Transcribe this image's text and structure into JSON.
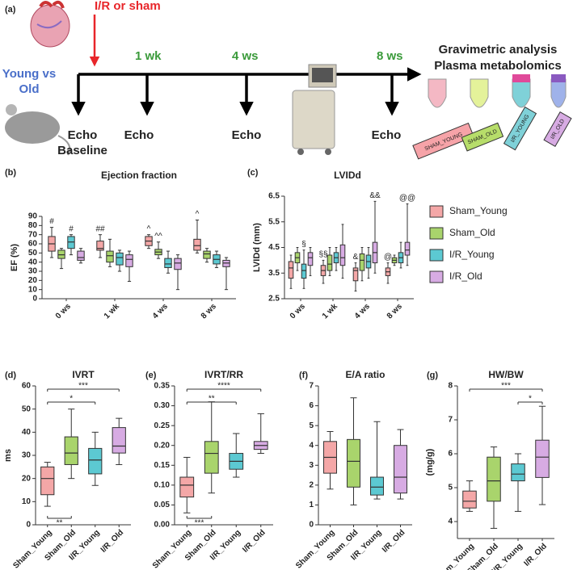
{
  "figure": {
    "panel_label": "(a)",
    "intervention": "I/R or sham",
    "groups": [
      "Young vs",
      "Old"
    ],
    "timepoints": [
      "1 wk",
      "4 ws",
      "8 ws"
    ],
    "echo": [
      "Echo",
      "Echo",
      "Echo",
      "Echo"
    ],
    "baseline": "Baseline",
    "endpoints": [
      "Gravimetric analysis",
      "Plasma metabolomics"
    ],
    "tubes": [
      "SHAM_YOUNG",
      "SHAM_OLD",
      "I/R_YOUNG",
      "I/R_OLD"
    ]
  },
  "chart_data": [
    {
      "type": "box",
      "label": "(b)",
      "title": "Ejection fraction",
      "ylabel": "EF (%)",
      "ylim": [
        0,
        90
      ],
      "yticks": [
        0,
        10,
        20,
        30,
        40,
        50,
        60,
        70,
        80,
        90
      ],
      "categories": [
        "0 ws",
        "1 wk",
        "4 ws",
        "8 ws"
      ],
      "series": [
        {
          "color": "#f4a7a7",
          "min": [
            45,
            45,
            55,
            50
          ],
          "q1": [
            52,
            53,
            58,
            53
          ],
          "median": [
            60,
            55,
            63,
            58
          ],
          "q3": [
            68,
            63,
            68,
            65
          ],
          "max": [
            78,
            70,
            70,
            86
          ],
          "marks": [
            "#",
            "##",
            "^",
            "^"
          ]
        },
        {
          "color": "#a9d46c",
          "min": [
            33,
            35,
            44,
            40
          ],
          "q1": [
            44,
            40,
            48,
            44
          ],
          "median": [
            48,
            47,
            51,
            49
          ],
          "q3": [
            53,
            52,
            54,
            52
          ],
          "max": [
            55,
            65,
            62,
            55
          ],
          "marks": [
            null,
            null,
            "^^",
            null
          ]
        },
        {
          "color": "#5cc9d2",
          "min": [
            48,
            30,
            28,
            34
          ],
          "q1": [
            55,
            37,
            34,
            38
          ],
          "median": [
            62,
            45,
            38,
            43
          ],
          "q3": [
            68,
            50,
            44,
            48
          ],
          "max": [
            70,
            53,
            52,
            52
          ],
          "marks": [
            "#",
            null,
            null,
            null
          ]
        },
        {
          "color": "#d7abe3",
          "min": [
            39,
            19,
            10,
            10
          ],
          "q1": [
            42,
            35,
            32,
            35
          ],
          "median": [
            45,
            43,
            39,
            39
          ],
          "q3": [
            52,
            48,
            44,
            42
          ],
          "max": [
            55,
            52,
            48,
            45
          ],
          "marks": [
            null,
            null,
            null,
            null
          ]
        }
      ]
    },
    {
      "type": "box",
      "label": "(c)",
      "title": "LVIDd",
      "ylabel": "LVIDd (mm)",
      "ylim": [
        2.5,
        6.5
      ],
      "yticks": [
        2.5,
        3.5,
        4.5,
        5.5,
        6.5
      ],
      "legend": "right",
      "categories": [
        "0 ws",
        "1 wk",
        "4 ws",
        "8 ws"
      ],
      "series": [
        {
          "name": "Sham_Young",
          "color": "#f4a7a7",
          "min": [
            2.9,
            3.1,
            2.8,
            3.1
          ],
          "q1": [
            3.3,
            3.4,
            3.2,
            3.4
          ],
          "median": [
            3.7,
            3.6,
            3.6,
            3.55
          ],
          "q3": [
            3.95,
            3.8,
            3.7,
            3.7
          ],
          "max": [
            4.2,
            4.0,
            3.9,
            3.9
          ],
          "marks": [
            null,
            "§§",
            "&",
            "@"
          ]
        },
        {
          "name": "Sham_Old",
          "color": "#a9d46c",
          "min": [
            3.6,
            3.4,
            3.2,
            3.8
          ],
          "q1": [
            3.9,
            3.6,
            3.6,
            3.9
          ],
          "median": [
            4.1,
            3.85,
            4.0,
            4.0
          ],
          "q3": [
            4.3,
            4.2,
            4.25,
            4.1
          ],
          "max": [
            4.5,
            4.5,
            4.5,
            4.2
          ],
          "marks": [
            null,
            null,
            null,
            null
          ]
        },
        {
          "name": "I/R_Young",
          "color": "#5cc9d2",
          "min": [
            2.9,
            3.6,
            3.3,
            3.7
          ],
          "q1": [
            3.3,
            3.9,
            3.7,
            3.9
          ],
          "median": [
            3.6,
            4.1,
            3.95,
            4.1
          ],
          "q3": [
            3.85,
            4.3,
            4.2,
            4.3
          ],
          "max": [
            4.4,
            4.5,
            4.5,
            4.7
          ],
          "marks": [
            "§",
            null,
            null,
            null
          ]
        },
        {
          "name": "I/R_Old",
          "color": "#d7abe3",
          "min": [
            3.4,
            3.3,
            3.5,
            3.8
          ],
          "q1": [
            3.8,
            3.8,
            3.9,
            4.2
          ],
          "median": [
            4.1,
            4.1,
            4.3,
            4.4
          ],
          "q3": [
            4.3,
            4.6,
            4.7,
            4.7
          ],
          "max": [
            4.5,
            5.4,
            6.3,
            6.2
          ],
          "marks": [
            null,
            null,
            "&&",
            "@@"
          ]
        }
      ]
    },
    {
      "type": "box",
      "label": "(d)",
      "title": "IVRT",
      "ylabel": "ms",
      "ylim": [
        0,
        60
      ],
      "yticks": [
        0,
        10,
        20,
        30,
        40,
        50,
        60
      ],
      "categories": [
        "Sham_Young",
        "Sham_Old",
        "I/R_Young",
        "I/R_Old"
      ],
      "colors": [
        "#f4a7a7",
        "#a9d46c",
        "#5cc9d2",
        "#d7abe3"
      ],
      "min": [
        8,
        20,
        17,
        26
      ],
      "q1": [
        13,
        26,
        22,
        31
      ],
      "median": [
        20,
        31,
        28,
        34
      ],
      "q3": [
        25,
        38,
        33,
        42
      ],
      "max": [
        27,
        50,
        40,
        46
      ],
      "brackets": [
        {
          "from": 0,
          "to": 3,
          "label": "***"
        },
        {
          "from": 0,
          "to": 2,
          "label": "*"
        },
        {
          "from": 0,
          "to": 1,
          "label": "**",
          "side": "below"
        }
      ]
    },
    {
      "type": "box",
      "label": "(e)",
      "title": "IVRT/RR",
      "ylim": [
        0,
        0.35
      ],
      "yticks": [
        {
          "value": 0,
          "label": "0.00"
        },
        {
          "value": 0.05,
          "label": "0.05"
        },
        {
          "value": 0.1,
          "label": "0.10"
        },
        {
          "value": 0.15,
          "label": "0.15"
        },
        {
          "value": 0.2,
          "label": "0.20"
        },
        {
          "value": 0.25,
          "label": "0.25"
        },
        {
          "value": 0.3,
          "label": "0.30"
        },
        {
          "value": 0.35,
          "label": "0.35"
        }
      ],
      "categories": [
        "Sham_Young",
        "Sham_Old",
        "I/R_Young",
        "I/R_Old"
      ],
      "colors": [
        "#f4a7a7",
        "#a9d46c",
        "#5cc9d2",
        "#d7abe3"
      ],
      "min": [
        0.03,
        0.08,
        0.12,
        0.18
      ],
      "q1": [
        0.07,
        0.13,
        0.14,
        0.19
      ],
      "median": [
        0.1,
        0.18,
        0.16,
        0.2
      ],
      "q3": [
        0.12,
        0.21,
        0.18,
        0.21
      ],
      "max": [
        0.17,
        0.31,
        0.23,
        0.28
      ],
      "brackets": [
        {
          "from": 0,
          "to": 3,
          "label": "****"
        },
        {
          "from": 0,
          "to": 2,
          "label": "**"
        },
        {
          "from": 0,
          "to": 1,
          "label": "***",
          "side": "below"
        }
      ]
    },
    {
      "type": "box",
      "label": "(f)",
      "title": "E/A ratio",
      "ylim": [
        0,
        7
      ],
      "yticks": [
        0,
        1,
        2,
        3,
        4,
        5,
        6,
        7
      ],
      "categories": [
        "Sham_Young",
        "Sham_Old",
        "I/R_Young",
        "I/R_Old"
      ],
      "colors": [
        "#f4a7a7",
        "#a9d46c",
        "#5cc9d2",
        "#d7abe3"
      ],
      "min": [
        1.8,
        1.0,
        1.3,
        1.3
      ],
      "q1": [
        2.6,
        1.9,
        1.5,
        1.6
      ],
      "median": [
        3.4,
        3.2,
        1.9,
        2.4
      ],
      "q3": [
        4.2,
        4.3,
        2.4,
        4.0
      ],
      "max": [
        4.7,
        6.4,
        5.2,
        4.8
      ]
    },
    {
      "type": "box",
      "label": "(g)",
      "title": "HW/BW",
      "ylabel": "(mg/g)",
      "ylim": [
        3.5,
        8
      ],
      "yticks": [
        4,
        5,
        6,
        7,
        8
      ],
      "categories": [
        "Sham_Young",
        "Sham_Old",
        "I/R_Young",
        "I/R_Old"
      ],
      "colors": [
        "#f4a7a7",
        "#a9d46c",
        "#5cc9d2",
        "#d7abe3"
      ],
      "min": [
        4.3,
        3.8,
        4.3,
        4.5
      ],
      "q1": [
        4.4,
        4.6,
        5.2,
        5.3
      ],
      "median": [
        4.6,
        5.2,
        5.4,
        5.9
      ],
      "q3": [
        4.9,
        5.9,
        5.7,
        6.4
      ],
      "max": [
        5.2,
        6.2,
        6.0,
        7.4
      ],
      "brackets": [
        {
          "from": 0,
          "to": 3,
          "label": "***"
        },
        {
          "from": 2,
          "to": 3,
          "label": "*"
        }
      ]
    }
  ]
}
